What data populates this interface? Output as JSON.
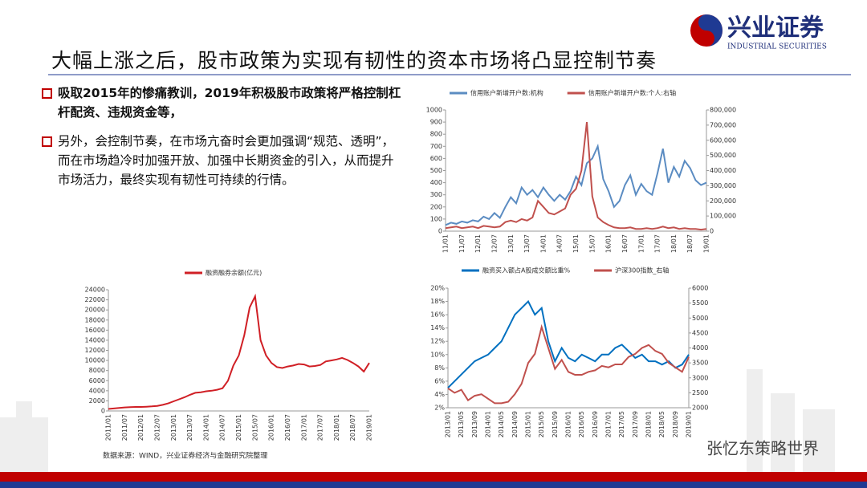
{
  "header": {
    "title": "大幅上涨之后，股市政策为实现有韧性的资本市场将凸显控制节奏",
    "logo": "兴业证券",
    "logo_en": "INDUSTRIAL SECURITIES"
  },
  "bullets": [
    "吸取2015年的惨痛教训，2019年积极股市政策将严格控制杠杆配资、违规资金等，",
    "另外，会控制节奏，在市场亢奋时会更加强调“规范、透明”，而在市场趋冷时加强开放、加强中长期资金的引入，从而提升市场活力，最终实现有韧性可持续的行情。"
  ],
  "footer": {
    "source": "数据来源：WIND，兴业证券经济与金融研究院整理",
    "watermark": "张忆东策略世界"
  },
  "chart_data": [
    {
      "type": "line",
      "categories": [
        "11/01",
        null,
        null,
        "11/07",
        null,
        null,
        "12/01",
        null,
        null,
        "12/07",
        null,
        null,
        "13/01",
        null,
        null,
        "13/07",
        null,
        null,
        "14/01",
        null,
        null,
        "14/07",
        null,
        null,
        "15/01",
        null,
        null,
        "15/07",
        null,
        null,
        "16/01",
        null,
        null,
        "16/07",
        null,
        null,
        "17/01",
        null,
        null,
        "17/07",
        null,
        null,
        "18/01",
        null,
        null,
        "18/07",
        null,
        null,
        "19/01"
      ],
      "series": [
        {
          "name": "信用账户新增开户数:机构",
          "color": "#5b8cc2",
          "values": [
            50,
            70,
            60,
            80,
            70,
            90,
            80,
            120,
            100,
            150,
            110,
            200,
            280,
            230,
            360,
            300,
            340,
            280,
            360,
            300,
            250,
            300,
            260,
            330,
            450,
            380,
            560,
            600,
            700,
            430,
            330,
            200,
            250,
            380,
            460,
            300,
            390,
            330,
            300,
            480,
            680,
            400,
            530,
            450,
            580,
            520,
            420,
            380,
            400
          ]
        },
        {
          "name": "信用账户新增开户数:个人:右轴",
          "color": "#c0504d",
          "axis": "y2",
          "values": [
            20000,
            25000,
            30000,
            20000,
            25000,
            30000,
            20000,
            35000,
            30000,
            25000,
            30000,
            60000,
            70000,
            60000,
            80000,
            70000,
            90000,
            200000,
            160000,
            120000,
            110000,
            130000,
            150000,
            240000,
            280000,
            400000,
            720000,
            230000,
            90000,
            60000,
            40000,
            25000,
            20000,
            20000,
            25000,
            15000,
            15000,
            20000,
            15000,
            20000,
            30000,
            20000,
            25000,
            15000,
            20000,
            15000,
            15000,
            10000,
            15000
          ]
        }
      ],
      "ylim": [
        0,
        1000
      ],
      "yticks": [
        0,
        100,
        200,
        300,
        400,
        500,
        600,
        700,
        800,
        900,
        1000
      ],
      "y2lim": [
        0,
        800000
      ],
      "y2ticks": [
        0,
        {
          "value": 100000,
          "label": "100,000"
        },
        {
          "value": 200000,
          "label": "200,000"
        },
        {
          "value": 300000,
          "label": "300,000"
        },
        {
          "value": 400000,
          "label": "400,000"
        },
        {
          "value": 500000,
          "label": "500,000"
        },
        {
          "value": 600000,
          "label": "600,000"
        },
        {
          "value": 700000,
          "label": "700,000"
        },
        {
          "value": 800000,
          "label": "800,000"
        }
      ],
      "grid": false
    },
    {
      "type": "line",
      "categories": [
        "2011/01",
        null,
        null,
        "2011/07",
        null,
        null,
        "2012/01",
        null,
        null,
        "2012/07",
        null,
        null,
        "2013/01",
        null,
        null,
        "2013/07",
        null,
        null,
        "2014/01",
        null,
        null,
        "2014/07",
        null,
        null,
        "2015/01",
        null,
        null,
        "2015/07",
        null,
        null,
        "2016/01",
        null,
        null,
        "2016/07",
        null,
        null,
        "2017/01",
        null,
        null,
        "2017/07",
        null,
        null,
        "2018/01",
        null,
        null,
        "2018/07",
        null,
        null,
        "2019/01"
      ],
      "series": [
        {
          "name": "融资融券余额(亿元)",
          "color": "#d01f25",
          "values": [
            400,
            500,
            600,
            700,
            750,
            800,
            800,
            850,
            900,
            1000,
            1200,
            1500,
            1900,
            2300,
            2700,
            3200,
            3600,
            3700,
            3900,
            4000,
            4200,
            4500,
            6000,
            9000,
            11000,
            15000,
            20500,
            22700,
            14000,
            11000,
            9500,
            8700,
            8500,
            8800,
            9000,
            9300,
            9200,
            8800,
            8900,
            9100,
            9800,
            10000,
            10200,
            10500,
            10100,
            9500,
            8800,
            7800,
            9500
          ]
        }
      ],
      "ylim": [
        0,
        24000
      ],
      "yticks": [
        0,
        2000,
        4000,
        6000,
        8000,
        10000,
        12000,
        14000,
        16000,
        18000,
        20000,
        22000,
        24000
      ],
      "grid": false
    },
    {
      "type": "line",
      "categories": [
        "2013/01",
        null,
        "2013/05",
        null,
        "2013/09",
        null,
        "2014/01",
        null,
        "2014/05",
        null,
        "2014/09",
        null,
        "2015/01",
        null,
        "2015/05",
        null,
        "2015/09",
        null,
        "2016/01",
        null,
        "2016/05",
        null,
        "2016/09",
        null,
        "2017/01",
        null,
        "2017/05",
        null,
        "2017/09",
        null,
        "2018/01",
        null,
        "2018/05",
        null,
        "2018/09",
        null,
        "2019/01"
      ],
      "series": [
        {
          "name": "融资买入额占A股成交额比重%",
          "color": "#0070c0",
          "values": [
            5,
            6,
            7,
            8,
            9,
            9.5,
            10,
            11,
            12,
            14,
            16,
            17,
            18,
            16,
            17,
            12,
            9,
            11,
            9.5,
            9,
            10,
            9.5,
            9,
            10,
            10,
            11,
            11.5,
            10.5,
            9.5,
            10,
            9,
            9,
            8.5,
            9,
            8,
            8.5,
            10
          ]
        },
        {
          "name": "沪深300指数_右轴",
          "color": "#c0504d",
          "axis": "y2",
          "values": [
            2650,
            2500,
            2600,
            2250,
            2400,
            2450,
            2300,
            2150,
            2150,
            2200,
            2450,
            2800,
            3500,
            3800,
            4700,
            4000,
            3300,
            3600,
            3200,
            3100,
            3100,
            3200,
            3250,
            3400,
            3350,
            3450,
            3450,
            3700,
            3800,
            4000,
            4100,
            3900,
            3800,
            3500,
            3350,
            3200,
            3700
          ]
        }
      ],
      "ylim": [
        2,
        20
      ],
      "yticks": [
        {
          "value": 2,
          "label": "2%"
        },
        {
          "value": 4,
          "label": "4%"
        },
        {
          "value": 6,
          "label": "6%"
        },
        {
          "value": 8,
          "label": "8%"
        },
        {
          "value": 10,
          "label": "10%"
        },
        {
          "value": 12,
          "label": "12%"
        },
        {
          "value": 14,
          "label": "14%"
        },
        {
          "value": 16,
          "label": "16%"
        },
        {
          "value": 18,
          "label": "18%"
        },
        {
          "value": 20,
          "label": "20%"
        }
      ],
      "y2lim": [
        2000,
        6000
      ],
      "y2ticks": [
        2000,
        2500,
        3000,
        3500,
        4000,
        4500,
        5000,
        5500,
        6000
      ],
      "grid": false
    }
  ]
}
